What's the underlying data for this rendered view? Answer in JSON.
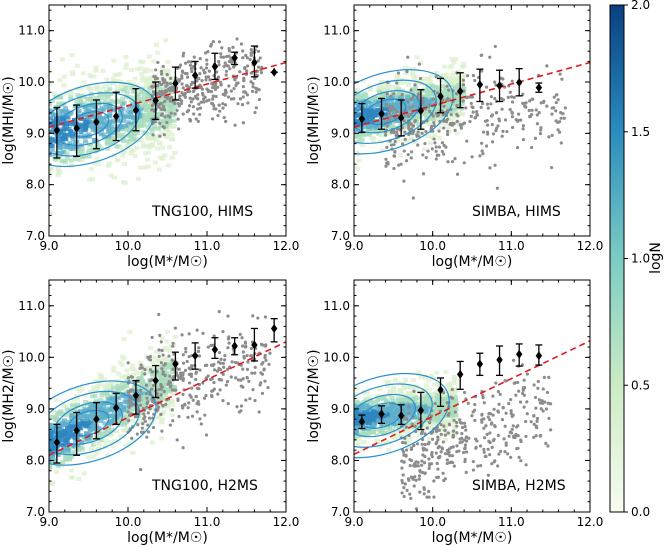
{
  "colors": {
    "hex_light": "#eef8d8",
    "hex_mid": "#9fd8b8",
    "hex_deep": "#2f86bf",
    "hex_dark": "#08306b",
    "contour": "#2b8fd0",
    "gray_points": "#8c8c8c",
    "fit_line": "#e31a1c",
    "binned": "#000000"
  },
  "colorbar": {
    "label": "logN",
    "min": 0.0,
    "max": 2.0,
    "ticks": [
      {
        "value": 0.0,
        "label": "0.0"
      },
      {
        "value": 0.5,
        "label": "0.5"
      },
      {
        "value": 1.0,
        "label": "1.0"
      },
      {
        "value": 1.5,
        "label": "1.5"
      },
      {
        "value": 2.0,
        "label": "2.0"
      }
    ]
  },
  "chart_data": [
    {
      "type": "scatter",
      "id": "tng-hi",
      "label": "TNG100, HIMS",
      "xlabel": "log(M*/M☉)",
      "ylabel": "log(MHI/M☉)",
      "xlim": [
        9.0,
        12.0
      ],
      "ylim": [
        7.0,
        11.5
      ],
      "xticks": [
        {
          "value": 9.0,
          "label": "9.0"
        },
        {
          "value": 10.0,
          "label": "10.0"
        },
        {
          "value": 11.0,
          "label": "11.0"
        },
        {
          "value": 12.0,
          "label": "12.0"
        }
      ],
      "yticks": [
        {
          "value": 7.0,
          "label": "7.0"
        },
        {
          "value": 8.0,
          "label": "8.0"
        },
        {
          "value": 9.0,
          "label": "9.0"
        },
        {
          "value": 10.0,
          "label": "10.0"
        },
        {
          "value": 11.0,
          "label": "11.0"
        }
      ],
      "fit_line": {
        "x": [
          9.0,
          12.0
        ],
        "y": [
          9.12,
          10.38
        ]
      },
      "binned": {
        "x": [
          9.1,
          9.35,
          9.6,
          9.85,
          10.1,
          10.35,
          10.6,
          10.85,
          11.1,
          11.35,
          11.6,
          11.85
        ],
        "y": [
          9.06,
          9.1,
          9.22,
          9.33,
          9.45,
          9.64,
          9.97,
          10.13,
          10.3,
          10.47,
          10.38,
          10.19
        ],
        "ylow": [
          8.52,
          8.55,
          8.7,
          8.86,
          9.05,
          9.27,
          9.65,
          9.88,
          10.05,
          10.34,
          10.1,
          10.19
        ],
        "yhigh": [
          9.5,
          9.55,
          9.65,
          9.8,
          9.87,
          10.0,
          10.29,
          10.4,
          10.56,
          10.58,
          10.7,
          10.19
        ]
      }
    },
    {
      "type": "scatter",
      "id": "simba-hi",
      "label": "SIMBA, HIMS",
      "xlabel": "log(M*/M☉)",
      "ylabel": "log(MHI/M☉)",
      "xlim": [
        9.0,
        12.0
      ],
      "ylim": [
        7.0,
        11.5
      ],
      "xticks": [
        {
          "value": 9.0,
          "label": "9.0"
        },
        {
          "value": 10.0,
          "label": "10.0"
        },
        {
          "value": 11.0,
          "label": "11.0"
        },
        {
          "value": 12.0,
          "label": "12.0"
        }
      ],
      "yticks": [
        {
          "value": 7.0,
          "label": "7.0"
        },
        {
          "value": 8.0,
          "label": "8.0"
        },
        {
          "value": 9.0,
          "label": "9.0"
        },
        {
          "value": 10.0,
          "label": "10.0"
        },
        {
          "value": 11.0,
          "label": "11.0"
        }
      ],
      "fit_line": {
        "x": [
          9.0,
          12.0
        ],
        "y": [
          9.12,
          10.38
        ]
      },
      "binned": {
        "x": [
          9.1,
          9.35,
          9.6,
          9.85,
          10.1,
          10.35,
          10.6,
          10.85,
          11.1,
          11.35
        ],
        "y": [
          9.28,
          9.38,
          9.3,
          9.44,
          9.72,
          9.82,
          9.95,
          9.93,
          9.99,
          9.89
        ],
        "ylow": [
          9.02,
          9.08,
          8.95,
          9.08,
          9.4,
          9.5,
          9.62,
          9.62,
          9.73,
          9.8
        ],
        "yhigh": [
          9.58,
          9.68,
          9.65,
          9.85,
          10.07,
          10.18,
          10.25,
          10.23,
          10.26,
          9.98
        ]
      }
    },
    {
      "type": "scatter",
      "id": "tng-h2",
      "label": "TNG100, H2MS",
      "xlabel": "log(M*/M☉)",
      "ylabel": "log(MH2/M☉)",
      "xlim": [
        9.0,
        12.0
      ],
      "ylim": [
        7.0,
        11.5
      ],
      "xticks": [
        {
          "value": 9.0,
          "label": "9.0"
        },
        {
          "value": 10.0,
          "label": "10.0"
        },
        {
          "value": 11.0,
          "label": "11.0"
        },
        {
          "value": 12.0,
          "label": "12.0"
        }
      ],
      "yticks": [
        {
          "value": 7.0,
          "label": "7.0"
        },
        {
          "value": 8.0,
          "label": "8.0"
        },
        {
          "value": 9.0,
          "label": "9.0"
        },
        {
          "value": 10.0,
          "label": "10.0"
        },
        {
          "value": 11.0,
          "label": "11.0"
        }
      ],
      "fit_line": {
        "x": [
          9.0,
          12.0
        ],
        "y": [
          8.1,
          10.3
        ]
      },
      "binned": {
        "x": [
          9.1,
          9.35,
          9.6,
          9.85,
          10.1,
          10.35,
          10.6,
          10.85,
          11.1,
          11.35,
          11.6,
          11.85
        ],
        "y": [
          8.35,
          8.58,
          8.8,
          9.02,
          9.26,
          9.55,
          9.87,
          10.03,
          10.15,
          10.22,
          10.24,
          10.56
        ],
        "ylow": [
          7.95,
          8.1,
          8.42,
          8.7,
          8.9,
          9.22,
          9.56,
          9.77,
          9.98,
          10.05,
          9.93,
          10.3
        ],
        "yhigh": [
          8.7,
          8.93,
          9.12,
          9.3,
          9.55,
          9.84,
          10.1,
          10.28,
          10.38,
          10.38,
          10.56,
          10.75
        ]
      }
    },
    {
      "type": "scatter",
      "id": "simba-h2",
      "label": "SIMBA, H2MS",
      "xlabel": "log(M*/M☉)",
      "ylabel": "log(MH2/M☉)",
      "xlim": [
        9.0,
        12.0
      ],
      "ylim": [
        7.0,
        11.5
      ],
      "xticks": [
        {
          "value": 9.0,
          "label": "9.0"
        },
        {
          "value": 10.0,
          "label": "10.0"
        },
        {
          "value": 11.0,
          "label": "11.0"
        },
        {
          "value": 12.0,
          "label": "12.0"
        }
      ],
      "yticks": [
        {
          "value": 7.0,
          "label": "7.0"
        },
        {
          "value": 8.0,
          "label": "8.0"
        },
        {
          "value": 9.0,
          "label": "9.0"
        },
        {
          "value": 10.0,
          "label": "10.0"
        },
        {
          "value": 11.0,
          "label": "11.0"
        }
      ],
      "fit_line": {
        "x": [
          9.0,
          12.0
        ],
        "y": [
          8.12,
          10.32
        ]
      },
      "binned": {
        "x": [
          9.1,
          9.35,
          9.6,
          9.85,
          10.1,
          10.35,
          10.6,
          10.85,
          11.1,
          11.35
        ],
        "y": [
          8.75,
          8.9,
          8.87,
          8.97,
          9.37,
          9.67,
          9.87,
          9.95,
          10.06,
          10.03
        ],
        "ylow": [
          8.62,
          8.72,
          8.7,
          8.6,
          9.05,
          9.38,
          9.65,
          9.65,
          9.83,
          9.85
        ],
        "yhigh": [
          8.88,
          9.06,
          9.08,
          9.32,
          9.6,
          9.92,
          10.08,
          10.22,
          10.26,
          10.24
        ]
      }
    }
  ]
}
